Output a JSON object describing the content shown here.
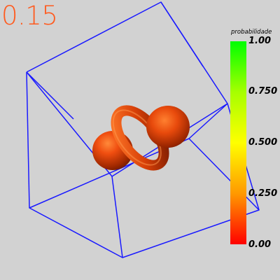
{
  "time_label": "0.15",
  "colorbar": {
    "title": "probabilidade",
    "ticks": [
      "1.00",
      "0.750",
      "0.500",
      "0.250",
      "0.00"
    ],
    "tick_values": [
      1.0,
      0.75,
      0.5,
      0.25,
      0.0
    ],
    "colors": {
      "top": "#00ff00",
      "upper_mid": "#a6ff00",
      "mid": "#ffff00",
      "lower_mid": "#ff9900",
      "bottom": "#ff0000"
    }
  },
  "scene": {
    "frame_color": "#1a1aff",
    "surface_color": "#ff5a1e",
    "surface_value": 0.15
  }
}
